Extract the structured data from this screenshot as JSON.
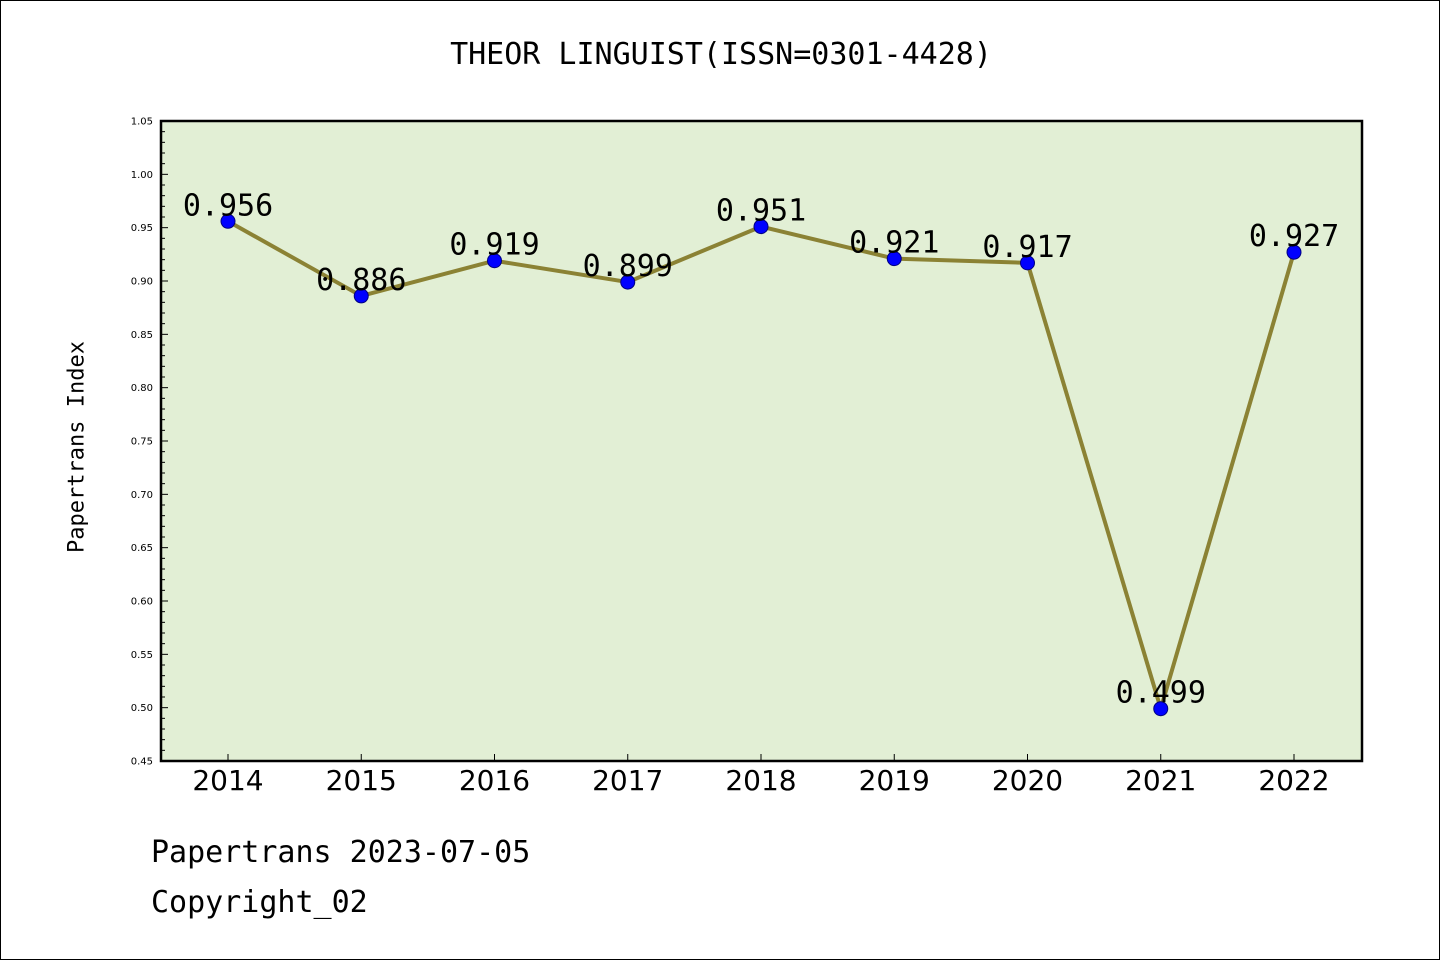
{
  "chart_data": {
    "type": "line",
    "title": "THEOR LINGUIST(ISSN=0301-4428)",
    "ylabel": "Papertrans Index",
    "xlabel": "",
    "categories": [
      "2014",
      "2015",
      "2016",
      "2017",
      "2018",
      "2019",
      "2020",
      "2021",
      "2022"
    ],
    "series": [
      {
        "values": [
          0.956,
          0.886,
          0.919,
          0.899,
          0.951,
          0.921,
          0.917,
          0.499,
          0.927
        ],
        "labels": [
          "0.956",
          "0.886",
          "0.919",
          "0.899",
          "0.951",
          "0.921",
          "0.917",
          "0.499",
          "0.927"
        ]
      }
    ],
    "ylim": [
      0.45,
      1.05
    ],
    "yticks": [
      "0.45",
      "0.50",
      "0.55",
      "0.60",
      "0.65",
      "0.70",
      "0.75",
      "0.80",
      "0.85",
      "0.90",
      "0.95",
      "1.00",
      "1.05"
    ],
    "grid": false,
    "legend": "none",
    "colors": {
      "plot_background": "#e2efd5",
      "line": "#8b8234",
      "marker": "#0000ff"
    }
  },
  "footer": {
    "date_text": "Papertrans 2023-07-05",
    "copyright_text": "Copyright_02"
  }
}
